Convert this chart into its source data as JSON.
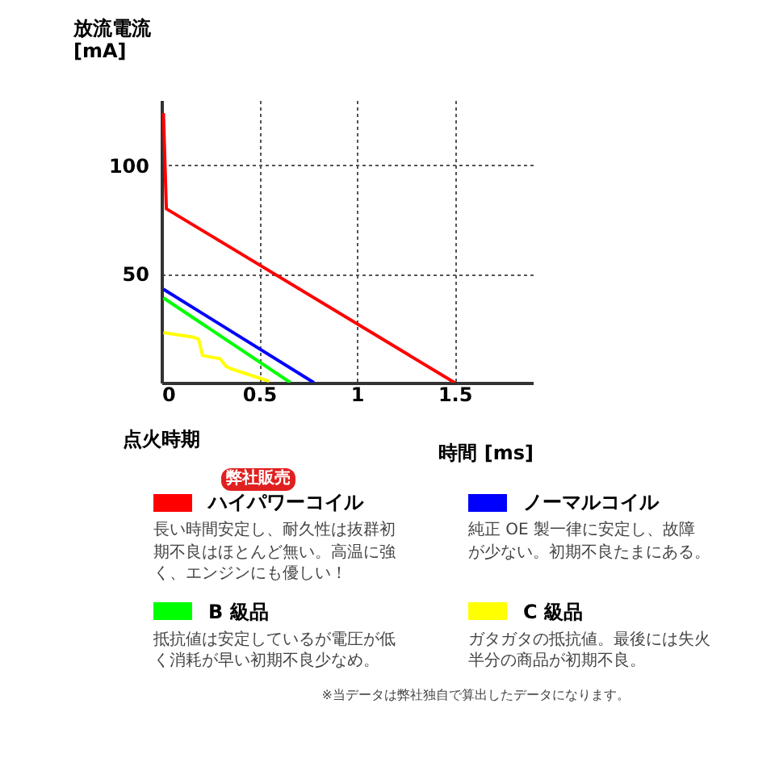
{
  "chart_data": {
    "type": "line",
    "xlabel": "時間 [ms]",
    "ylabel": "放流電流 [mA]",
    "xlim": [
      0,
      1.9
    ],
    "ylim": [
      0,
      130
    ],
    "xticks": [
      0,
      0.5,
      1,
      1.5
    ],
    "yticks": [
      50,
      100
    ],
    "grid": true,
    "legend": "bottom",
    "line_style": "solid",
    "series": [
      {
        "name": "ハイパワーコイル",
        "color": "#ff0000",
        "x": [
          0.01,
          0.025,
          1.5
        ],
        "values": [
          124,
          80,
          0
        ]
      },
      {
        "name": "ノーマルコイル",
        "color": "#0000ff",
        "x": [
          0.01,
          0.78
        ],
        "values": [
          43,
          0
        ]
      },
      {
        "name": "B 級品",
        "color": "#00ff00",
        "x": [
          0.01,
          0.66
        ],
        "values": [
          39,
          0
        ]
      },
      {
        "name": "C 級品",
        "color": "#ffff00",
        "x": [
          0.01,
          0.16,
          0.19,
          0.21,
          0.3,
          0.33,
          0.355,
          0.55
        ],
        "values": [
          23,
          21,
          20,
          12.5,
          11,
          7.5,
          6.4,
          0.7
        ]
      }
    ],
    "annotations": [
      "弊社販売",
      "点火時期",
      "長い時間安定し、耐久性は抜群初期不良はほとんど無い。高温に強く、エンジンにも優しい！",
      "純正 OE 製一律に安定し、故障が少ない。初期不良たまにある。",
      "抵抗値は安定しているが電圧が低く消耗が早い初期不良少なめ。",
      "ガタガタの抵抗値。最後には失火半分の商品が初期不良。",
      "※当データは弊社独自で算出したデータになります。"
    ]
  }
}
